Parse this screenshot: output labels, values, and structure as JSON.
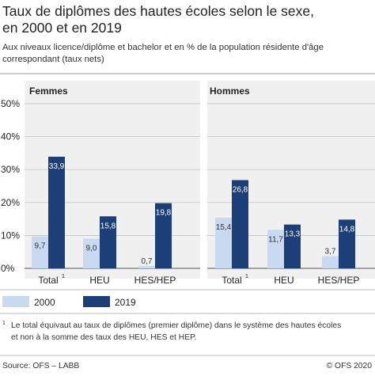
{
  "header": {
    "title_line1": "Taux de diplômes des hautes écoles selon le sexe,",
    "title_line2": "en 2000 et en 2019",
    "subtitle_line1": "Aux niveaux licence/diplôme et bachelor et en % de la population résidente d'âge",
    "subtitle_line2": "correspondant (taux nets)"
  },
  "footnote": {
    "marker": "1",
    "line1": "Le total équivaut au taux de diplômes (premier diplôme) dans le système des hautes écoles",
    "line2": "et non à la somme des taux des HEU, HES et HEP."
  },
  "footer": {
    "source": "Source: OFS – LABB",
    "copyright": "© OFS 2020"
  },
  "colors": {
    "series_2000": "#c9d9f0",
    "series_2019": "#1c3f78",
    "panel_bg": "#f0f0f0",
    "grid": "#bbbbbb",
    "text": "#222222"
  },
  "chart_data": [
    {
      "type": "bar",
      "panel": "Femmes",
      "categories": [
        "Total",
        "HEU",
        "HES/HEP"
      ],
      "category_footnotes": [
        "1",
        "",
        ""
      ],
      "series": [
        {
          "name": "2000",
          "values": [
            9.7,
            9.0,
            0.7
          ],
          "labels": [
            "9,7",
            "9,0",
            "0,7"
          ]
        },
        {
          "name": "2019",
          "values": [
            33.9,
            15.8,
            19.8
          ],
          "labels": [
            "33,9",
            "15,8",
            "19,8"
          ]
        }
      ],
      "ylim": [
        0,
        50
      ],
      "ytick_labels": [
        "0%",
        "10%",
        "20%",
        "30%",
        "40%",
        "50%"
      ],
      "grid": true
    },
    {
      "type": "bar",
      "panel": "Hommes",
      "categories": [
        "Total",
        "HEU",
        "HES/HEP"
      ],
      "category_footnotes": [
        "1",
        "",
        ""
      ],
      "series": [
        {
          "name": "2000",
          "values": [
            15.4,
            11.7,
            3.7
          ],
          "labels": [
            "15,4",
            "11,7",
            "3,7"
          ]
        },
        {
          "name": "2019",
          "values": [
            26.8,
            13.3,
            14.8
          ],
          "labels": [
            "26,8",
            "13,3",
            "14,8"
          ]
        }
      ],
      "ylim": [
        0,
        50
      ],
      "grid": true
    }
  ],
  "legend": {
    "placement": "bottom",
    "items": [
      {
        "label": "2000",
        "color": "#c9d9f0"
      },
      {
        "label": "2019",
        "color": "#1c3f78"
      }
    ]
  }
}
